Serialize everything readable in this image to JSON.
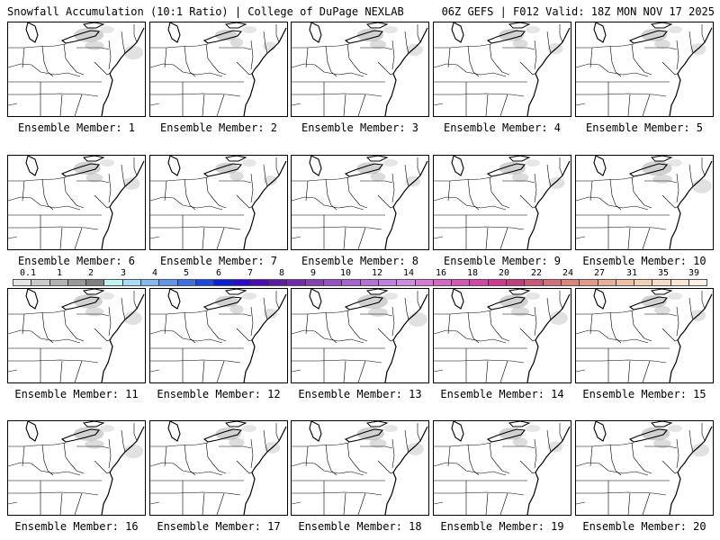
{
  "header": {
    "left_title": "Snowfall Accumulation (10:1 Ratio) | College of DuPage NEXLAB",
    "right_title": "06Z GEFS | F012 Valid: 18Z MON NOV 17 2025"
  },
  "members": [
    {
      "label": "Ensemble Member: 1"
    },
    {
      "label": "Ensemble Member: 2"
    },
    {
      "label": "Ensemble Member: 3"
    },
    {
      "label": "Ensemble Member: 4"
    },
    {
      "label": "Ensemble Member: 5"
    },
    {
      "label": "Ensemble Member: 6"
    },
    {
      "label": "Ensemble Member: 7"
    },
    {
      "label": "Ensemble Member: 8"
    },
    {
      "label": "Ensemble Member: 9"
    },
    {
      "label": "Ensemble Member: 10"
    },
    {
      "label": "Ensemble Member: 11"
    },
    {
      "label": "Ensemble Member: 12"
    },
    {
      "label": "Ensemble Member: 13"
    },
    {
      "label": "Ensemble Member: 14"
    },
    {
      "label": "Ensemble Member: 15"
    },
    {
      "label": "Ensemble Member: 16"
    },
    {
      "label": "Ensemble Member: 17"
    },
    {
      "label": "Ensemble Member: 18"
    },
    {
      "label": "Ensemble Member: 19"
    },
    {
      "label": "Ensemble Member: 20"
    }
  ],
  "colorbar": {
    "ticks": [
      "0.1",
      "1",
      "2",
      "3",
      "4",
      "5",
      "6",
      "7",
      "8",
      "9",
      "10",
      "12",
      "14",
      "16",
      "18",
      "20",
      "22",
      "24",
      "27",
      "31",
      "35",
      "39"
    ],
    "colors": [
      "#e6e6e6",
      "#cccccc",
      "#b3b3b3",
      "#999999",
      "#808080",
      "#bff4f2",
      "#a6dcf5",
      "#84b9f0",
      "#5f95ec",
      "#3e6fe6",
      "#1c49e2",
      "#0a1fd8",
      "#2c0bd0",
      "#4b0cb8",
      "#5d1aa8",
      "#6f2ab0",
      "#8340b8",
      "#9550c4",
      "#a763cf",
      "#b571d8",
      "#c27fe0",
      "#cf8be4",
      "#d679d8",
      "#d966c6",
      "#d655b5",
      "#d445a4",
      "#d23690",
      "#c43c7c",
      "#cc5578",
      "#d66e78",
      "#de8478",
      "#e49a86",
      "#eaae96",
      "#efc0a6",
      "#f3d0b6",
      "#f7dec6",
      "#f9e8d6",
      "#fbf0e4"
    ]
  }
}
